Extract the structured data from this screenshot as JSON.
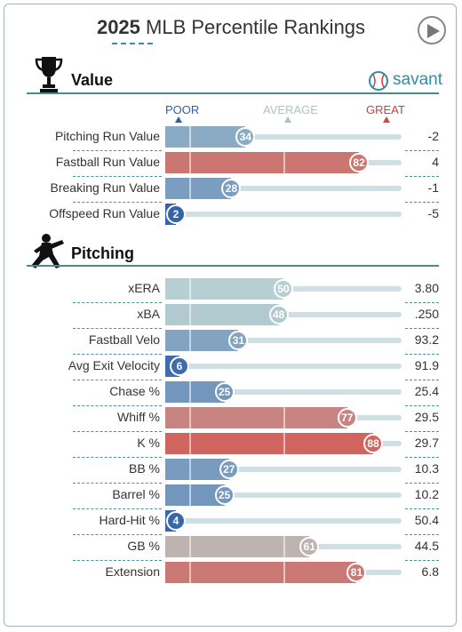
{
  "title": {
    "year": "2025",
    "text": "MLB Percentile Rankings"
  },
  "icons": {
    "play": "play-button-icon",
    "trophy": "trophy-icon",
    "pitcher": "pitcher-icon",
    "baseball": "baseball-icon"
  },
  "value_section": {
    "title": "Value",
    "brand": "savant",
    "legend": {
      "poor": "POOR",
      "average": "AVERAGE",
      "great": "GREAT"
    },
    "rows": [
      {
        "label": "Pitching Run Value",
        "percentile": 34,
        "value": "-2"
      },
      {
        "label": "Fastball Run Value",
        "percentile": 82,
        "value": "4"
      },
      {
        "label": "Breaking Run Value",
        "percentile": 28,
        "value": "-1"
      },
      {
        "label": "Offspeed Run Value",
        "percentile": 2,
        "value": "-5"
      }
    ]
  },
  "pitching_section": {
    "title": "Pitching",
    "rows": [
      {
        "label": "xERA",
        "percentile": 50,
        "value": "3.80"
      },
      {
        "label": "xBA",
        "percentile": 48,
        "value": ".250"
      },
      {
        "label": "Fastball Velo",
        "percentile": 31,
        "value": "93.2"
      },
      {
        "label": "Avg Exit Velocity",
        "percentile": 6,
        "value": "91.9"
      },
      {
        "label": "Chase %",
        "percentile": 25,
        "value": "25.4"
      },
      {
        "label": "Whiff %",
        "percentile": 77,
        "value": "29.5"
      },
      {
        "label": "K %",
        "percentile": 88,
        "value": "29.7"
      },
      {
        "label": "BB %",
        "percentile": 27,
        "value": "10.3"
      },
      {
        "label": "Barrel %",
        "percentile": 25,
        "value": "10.2"
      },
      {
        "label": "Hard-Hit %",
        "percentile": 4,
        "value": "50.4"
      },
      {
        "label": "GB %",
        "percentile": 61,
        "value": "44.5",
        "neutral": true
      },
      {
        "label": "Extension",
        "percentile": 81,
        "value": "6.8"
      }
    ]
  },
  "colors": {
    "poor": "#2f5ea6",
    "average": "#b6cfd2",
    "great": "#d8443b",
    "neutral": "#bfb3b0",
    "accent": "#3a8fa6"
  }
}
